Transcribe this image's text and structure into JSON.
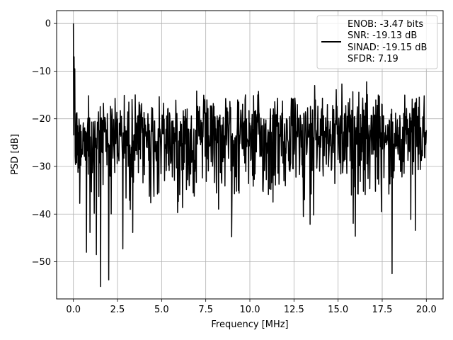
{
  "chart_data": {
    "type": "line",
    "title": "",
    "xlabel": "Frequency [MHz]",
    "ylabel": "PSD [dB]",
    "xlim": [
      -0.95,
      20.95
    ],
    "ylim": [
      -57.8,
      2.7
    ],
    "grid": true,
    "legend_position": "top-right",
    "x_ticks": [
      0.0,
      2.5,
      5.0,
      7.5,
      10.0,
      12.5,
      15.0,
      17.5,
      20.0
    ],
    "x_tick_labels": [
      "0.0",
      "2.5",
      "5.0",
      "7.5",
      "10.0",
      "12.5",
      "15.0",
      "17.5",
      "20.0"
    ],
    "y_ticks": [
      0,
      -10,
      -20,
      -30,
      -40,
      -50
    ],
    "y_tick_labels": [
      "0",
      "−10",
      "−20",
      "−30",
      "−40",
      "−50"
    ],
    "series": [
      {
        "name": "",
        "color": "#000000",
        "legend_lines": [
          "ENOB: -3.47 bits",
          "SNR: -19.13 dB",
          "SINAD: -19.15 dB",
          "SFDR: 7.19"
        ],
        "x_range": [
          0,
          20
        ],
        "num_points": 1000,
        "noise_floor_mean": -22,
        "noise_envelope": [
          -55,
          -9
        ],
        "peaks": [
          {
            "x": 0.0,
            "y": 0.0
          },
          {
            "x": 0.05,
            "y": -7.0
          },
          {
            "x": 0.08,
            "y": -9.5
          }
        ],
        "deep_nulls": [
          {
            "x": 1.55,
            "y": -55.2
          },
          {
            "x": 2.0,
            "y": -53.8
          },
          {
            "x": 18.05,
            "y": -52.5
          },
          {
            "x": 0.75,
            "y": -48.0
          },
          {
            "x": 1.3,
            "y": -48.5
          },
          {
            "x": 2.8,
            "y": -47.3
          }
        ]
      }
    ]
  }
}
